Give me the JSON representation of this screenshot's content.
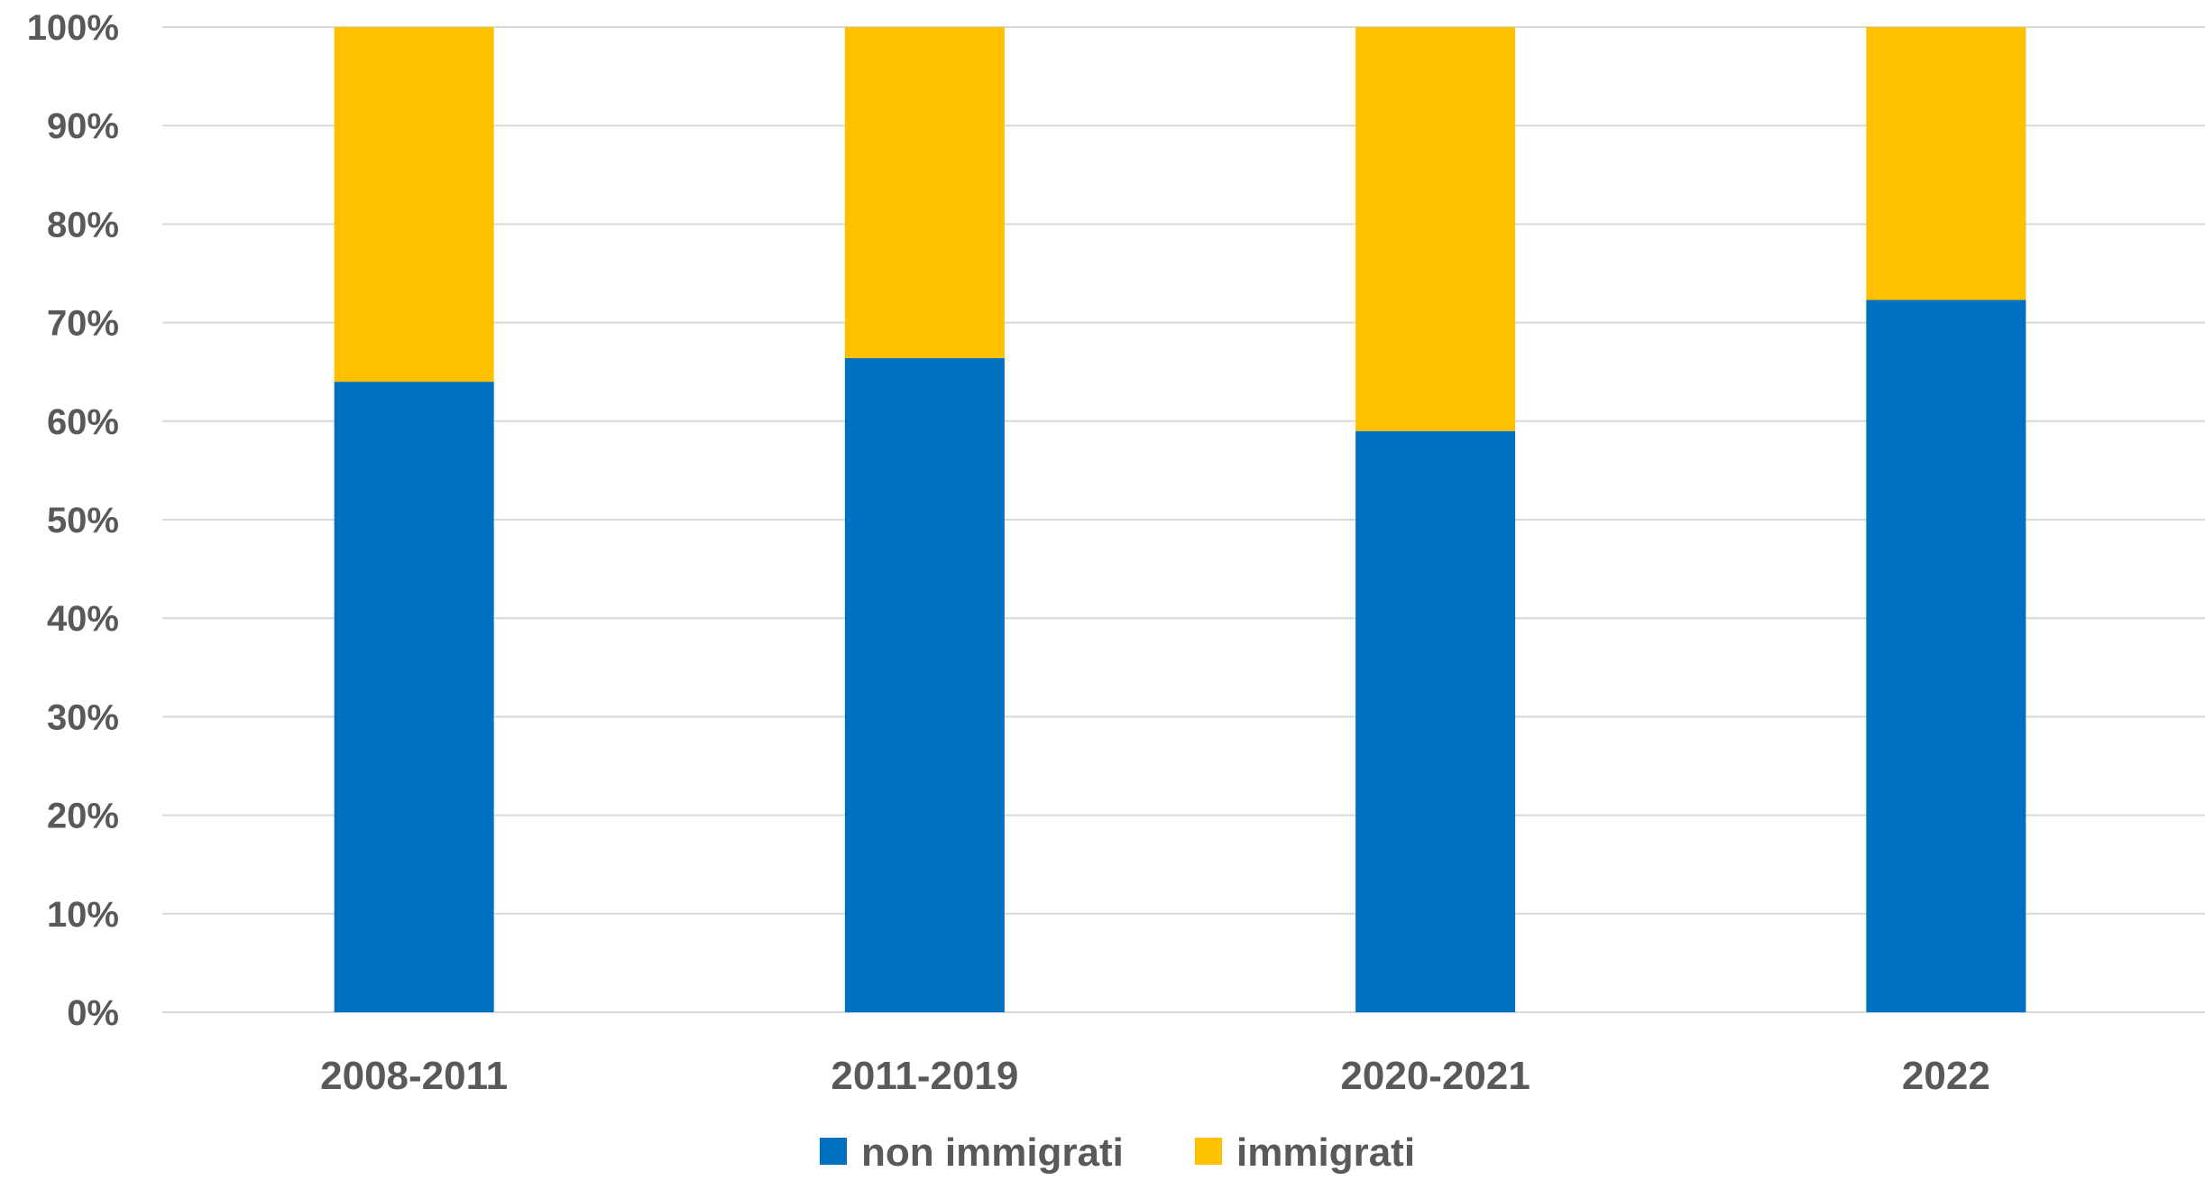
{
  "chart_data": {
    "type": "bar",
    "stacked": true,
    "categories": [
      "2008-2011",
      "2011-2019",
      "2020-2021",
      "2022"
    ],
    "series": [
      {
        "name": "non immigrati",
        "values": [
          64,
          66.4,
          59,
          72.3
        ],
        "color": "#0070C0"
      },
      {
        "name": "immigrati",
        "values": [
          36,
          33.6,
          41,
          27.7
        ],
        "color": "#FFC000"
      }
    ],
    "yticks": [
      "0%",
      "10%",
      "20%",
      "30%",
      "40%",
      "50%",
      "60%",
      "70%",
      "80%",
      "90%",
      "100%"
    ],
    "ylim": [
      0,
      100
    ],
    "grid": true,
    "legend_position": "bottom",
    "title": "",
    "xlabel": "",
    "ylabel": ""
  }
}
